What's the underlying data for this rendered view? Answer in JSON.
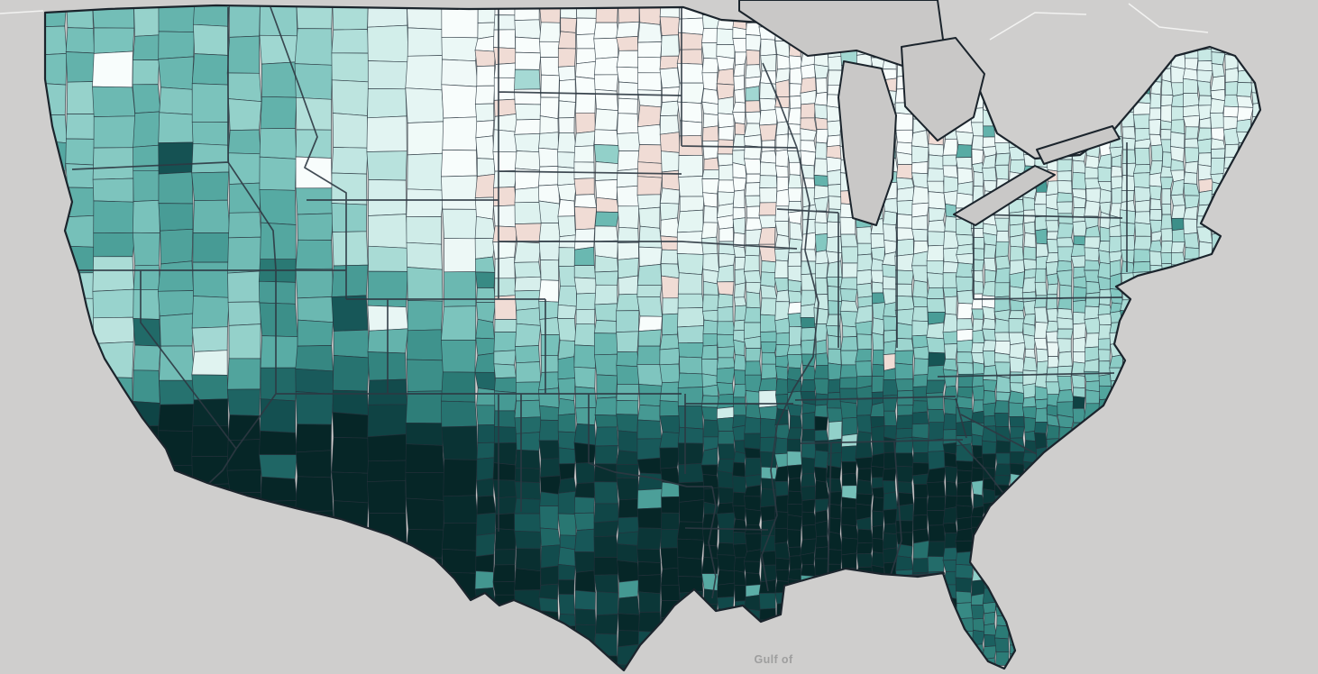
{
  "map": {
    "type": "us-county-choropleth",
    "labels": {
      "gulf": "Gulf of"
    },
    "colors": {
      "ocean": "#cfcecd",
      "lake": "#c9c8c7",
      "county_border": "#24313b",
      "state_border": "#2e3942",
      "us_outline": "#1b242c",
      "water_label": "#9e9e9e",
      "basemap_line": "#f2f2f1",
      "pink_outlier": "#f0dcd5"
    },
    "color_scale": [
      "#f8fdfc",
      "#eaf7f5",
      "#d6efec",
      "#bce4df",
      "#9cd5cf",
      "#79c2bb",
      "#58aba4",
      "#3f938d",
      "#2b7a75",
      "#1b6060",
      "#104748",
      "#062627"
    ]
  }
}
